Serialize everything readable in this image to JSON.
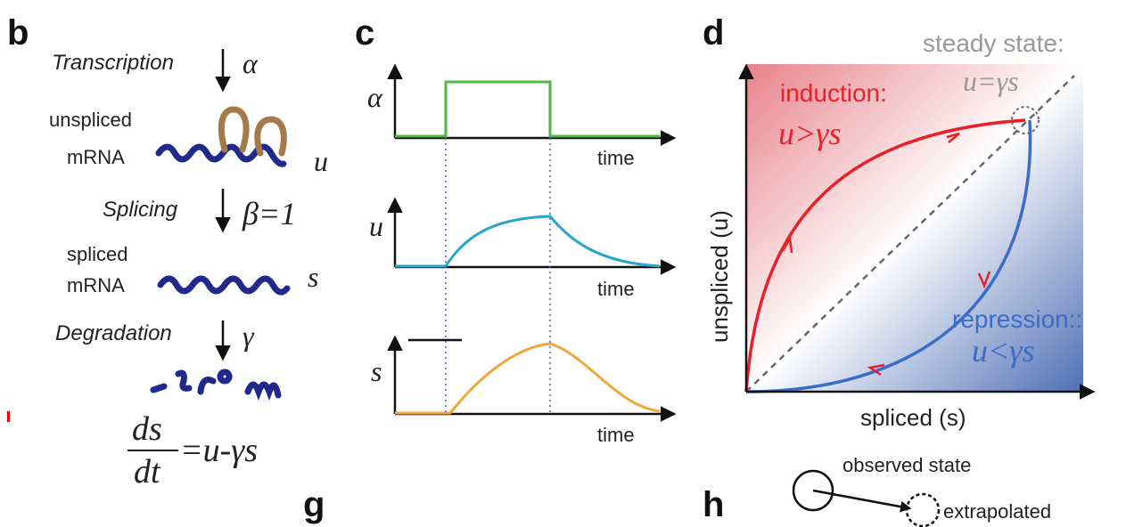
{
  "panels": {
    "b": {
      "label": "b",
      "steps": [
        "Transcription",
        "Splicing",
        "Degradation"
      ],
      "rates": [
        "α",
        "β=1",
        "γ"
      ],
      "unspliced": [
        "unspliced",
        "mRNA"
      ],
      "unspliced_symbol": "u",
      "spliced": [
        "spliced",
        "mRNA"
      ],
      "spliced_symbol": "s",
      "equation": {
        "numerator": "ds",
        "denominator": "dt",
        "rhs": "=u-γs"
      }
    },
    "c": {
      "label": "c",
      "plots": [
        {
          "ylabel": "α",
          "xlabel": "time"
        },
        {
          "ylabel": "u",
          "xlabel": "time"
        },
        {
          "ylabel": "s",
          "xlabel": "time"
        }
      ]
    },
    "d": {
      "label": "d",
      "steady_state": "steady state:",
      "steady_state_eq": "u=γs",
      "induction": "induction:",
      "induction_eq": "u>γs",
      "repression": "repression::",
      "repression_eq": "u<γs",
      "ylabel": "unspliced (u)",
      "xlabel": "spliced (s)"
    },
    "g": {
      "label": "g"
    },
    "h": {
      "label": "h",
      "observed": "observed state",
      "extrapolated": "extrapolated"
    }
  }
}
